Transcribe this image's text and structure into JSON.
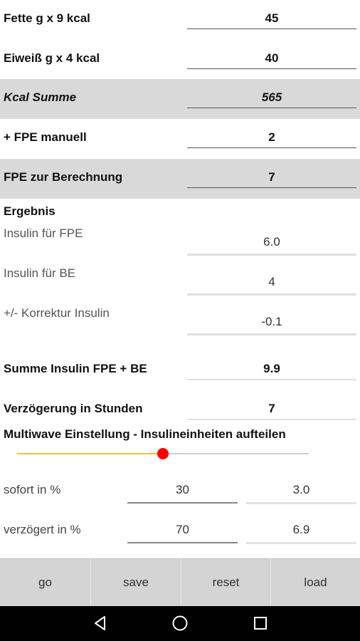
{
  "rows": {
    "fette": {
      "label": "Fette g x 9 kcal",
      "value": "45"
    },
    "eiweiss": {
      "label": "Eiweiß g x 4 kcal",
      "value": "40"
    },
    "kcal_summe": {
      "label": "Kcal Summe",
      "value": "565"
    },
    "fpe_manuell": {
      "label": "+ FPE manuell",
      "value": "2"
    },
    "fpe_berechnung": {
      "label": "FPE zur Berechnung",
      "value": "7"
    }
  },
  "ergebnis": {
    "heading": "Ergebnis",
    "insulin_fpe": {
      "label": "Insulin für FPE",
      "value": "6.0"
    },
    "insulin_be": {
      "label": "Insulin für BE",
      "value": "4"
    },
    "korrektur": {
      "label": "+/- Korrektur Insulin",
      "value": "-0.1"
    },
    "summe": {
      "label": "Summe Insulin FPE + BE",
      "value": "9.9"
    },
    "verzoegerung": {
      "label": "Verzögerung in Stunden",
      "value": "7"
    }
  },
  "multiwave": {
    "heading": "Multiwave Einstellung - Insulineinheiten aufteilen",
    "slider_fraction": 0.5,
    "sofort": {
      "label": "sofort in %",
      "percent": "30",
      "units": "3.0"
    },
    "verzoegert": {
      "label": "verzögert in %",
      "percent": "70",
      "units": "6.9"
    }
  },
  "buttons": {
    "go": "go",
    "save": "save",
    "reset": "reset",
    "load": "load"
  },
  "colors": {
    "accent": "#f1c232",
    "thumb": "#ff0000",
    "highlight_row": "#d9d9d9"
  },
  "navbar": {
    "icons": [
      "back-icon",
      "home-icon",
      "recents-icon"
    ]
  }
}
